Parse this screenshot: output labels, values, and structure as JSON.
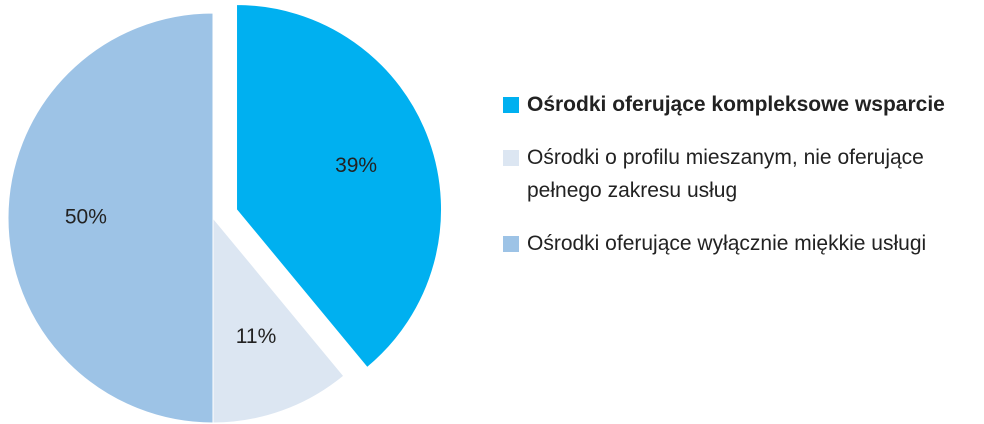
{
  "chart_data": {
    "type": "pie",
    "categories": [
      "Ośrodki oferujące kompleksowe wsparcie",
      "Ośrodki o profilu mieszanym, nie oferujące pełnego zakresu usług",
      "Ośrodki oferujące wyłącznie miękkie usługi"
    ],
    "values": [
      39,
      11,
      50
    ],
    "value_labels": [
      "39%",
      "11%",
      "50%"
    ],
    "colors": [
      "#00b0f0",
      "#dce6f2",
      "#9dc3e6"
    ],
    "exploded": [
      true,
      false,
      false
    ]
  }
}
